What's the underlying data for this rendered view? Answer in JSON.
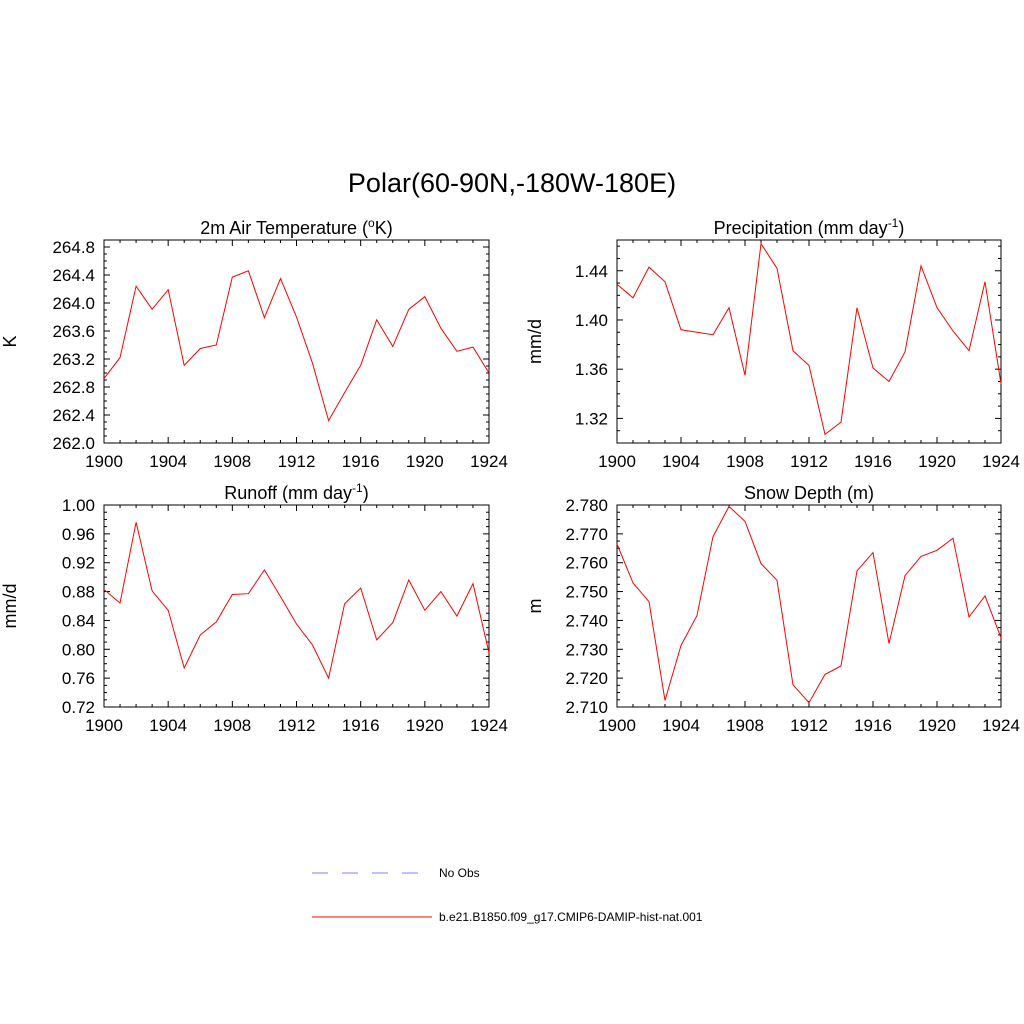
{
  "title": "Polar(60-90N,-180W-180E)",
  "colors": {
    "model": "#ff0000",
    "obs": "#8080ff"
  },
  "legend": [
    {
      "label": "No Obs",
      "style": "dashed",
      "color": "#8080ff"
    },
    {
      "label": "b.e21.B1850.f09_g17.CMIP6-DAMIP-hist-nat.001",
      "style": "solid",
      "color": "#ff0000"
    }
  ],
  "chart_data": [
    {
      "type": "line",
      "title": "2m Air Temperature (",
      "title_sup": "o",
      "title_after": "K)",
      "ylabel": "K",
      "xlim": [
        1900,
        1924
      ],
      "ylim": [
        262.0,
        264.9
      ],
      "xticks": [
        "1900",
        "1904",
        "1908",
        "1912",
        "1916",
        "1920",
        "1924"
      ],
      "xtick_values": [
        1900,
        1904,
        1908,
        1912,
        1916,
        1920,
        1924
      ],
      "yticks": [
        "262.0",
        "262.4",
        "262.8",
        "263.2",
        "263.6",
        "264.0",
        "264.4",
        "264.8"
      ],
      "ytick_values": [
        262.0,
        262.4,
        262.8,
        263.2,
        263.6,
        264.0,
        264.4,
        264.8
      ],
      "yminor_step": 0.1,
      "x": [
        1900,
        1901,
        1902,
        1903,
        1904,
        1905,
        1906,
        1907,
        1908,
        1909,
        1910,
        1911,
        1912,
        1913,
        1914,
        1915,
        1916,
        1917,
        1918,
        1919,
        1920,
        1921,
        1922,
        1923,
        1924
      ],
      "values": [
        262.92,
        263.22,
        264.24,
        263.91,
        264.19,
        263.11,
        263.35,
        263.4,
        264.37,
        264.46,
        263.79,
        264.35,
        263.8,
        263.14,
        262.32,
        262.72,
        263.11,
        263.76,
        263.38,
        263.91,
        264.09,
        263.64,
        263.31,
        263.37,
        263.0
      ]
    },
    {
      "type": "line",
      "title": "Precipitation (mm day",
      "title_sup": "-1",
      "title_after": ")",
      "ylabel": "mm/d",
      "xlim": [
        1900,
        1924
      ],
      "ylim": [
        1.3,
        1.465
      ],
      "xticks": [
        "1900",
        "1904",
        "1908",
        "1912",
        "1916",
        "1920",
        "1924"
      ],
      "xtick_values": [
        1900,
        1904,
        1908,
        1912,
        1916,
        1920,
        1924
      ],
      "yticks": [
        "1.32",
        "1.36",
        "1.40",
        "1.44"
      ],
      "ytick_values": [
        1.32,
        1.36,
        1.4,
        1.44
      ],
      "yminor_step": 0.01,
      "x": [
        1900,
        1901,
        1902,
        1903,
        1904,
        1905,
        1906,
        1907,
        1908,
        1909,
        1910,
        1911,
        1912,
        1913,
        1914,
        1915,
        1916,
        1917,
        1918,
        1919,
        1920,
        1921,
        1922,
        1923,
        1924
      ],
      "values": [
        1.429,
        1.418,
        1.443,
        1.431,
        1.392,
        1.39,
        1.388,
        1.41,
        1.355,
        1.462,
        1.442,
        1.375,
        1.363,
        1.307,
        1.317,
        1.41,
        1.361,
        1.35,
        1.374,
        1.444,
        1.41,
        1.391,
        1.375,
        1.431,
        1.348
      ]
    },
    {
      "type": "line",
      "title": "Runoff (mm day",
      "title_sup": "-1",
      "title_after": ")",
      "ylabel": "mm/d",
      "xlim": [
        1900,
        1924
      ],
      "ylim": [
        0.72,
        1.0
      ],
      "xticks": [
        "1900",
        "1904",
        "1908",
        "1912",
        "1916",
        "1920",
        "1924"
      ],
      "xtick_values": [
        1900,
        1904,
        1908,
        1912,
        1916,
        1920,
        1924
      ],
      "yticks": [
        "0.72",
        "0.76",
        "0.80",
        "0.84",
        "0.88",
        "0.92",
        "0.96",
        "1.00"
      ],
      "ytick_values": [
        0.72,
        0.76,
        0.8,
        0.84,
        0.88,
        0.92,
        0.96,
        1.0
      ],
      "yminor_step": 0.01,
      "x": [
        1900,
        1901,
        1902,
        1903,
        1904,
        1905,
        1906,
        1907,
        1908,
        1909,
        1910,
        1911,
        1912,
        1913,
        1914,
        1915,
        1916,
        1917,
        1918,
        1919,
        1920,
        1921,
        1922,
        1923,
        1924
      ],
      "values": [
        0.883,
        0.864,
        0.976,
        0.881,
        0.854,
        0.774,
        0.82,
        0.838,
        0.876,
        0.877,
        0.91,
        0.873,
        0.835,
        0.806,
        0.76,
        0.863,
        0.885,
        0.813,
        0.837,
        0.896,
        0.854,
        0.88,
        0.846,
        0.891,
        0.795
      ]
    },
    {
      "type": "line",
      "title": "Snow Depth (m)",
      "title_sup": "",
      "title_after": "",
      "ylabel": "m",
      "xlim": [
        1900,
        1924
      ],
      "ylim": [
        2.71,
        2.78
      ],
      "xticks": [
        "1900",
        "1904",
        "1908",
        "1912",
        "1916",
        "1920",
        "1924"
      ],
      "xtick_values": [
        1900,
        1904,
        1908,
        1912,
        1916,
        1920,
        1924
      ],
      "yticks": [
        "2.710",
        "2.720",
        "2.730",
        "2.740",
        "2.750",
        "2.760",
        "2.770",
        "2.780"
      ],
      "ytick_values": [
        2.71,
        2.72,
        2.73,
        2.74,
        2.75,
        2.76,
        2.77,
        2.78
      ],
      "yminor_step": 0.0025,
      "x": [
        1900,
        1901,
        1902,
        1903,
        1904,
        1905,
        1906,
        1907,
        1908,
        1909,
        1910,
        1911,
        1912,
        1913,
        1914,
        1915,
        1916,
        1917,
        1918,
        1919,
        1920,
        1921,
        1922,
        1923,
        1924
      ],
      "values": [
        2.7665,
        2.753,
        2.7465,
        2.7123,
        2.7313,
        2.7417,
        2.769,
        2.7795,
        2.7743,
        2.7597,
        2.7539,
        2.7177,
        2.7115,
        2.7213,
        2.7242,
        2.7572,
        2.7635,
        2.732,
        2.7555,
        2.7622,
        2.7643,
        2.7685,
        2.7412,
        2.7485,
        2.734
      ]
    }
  ]
}
